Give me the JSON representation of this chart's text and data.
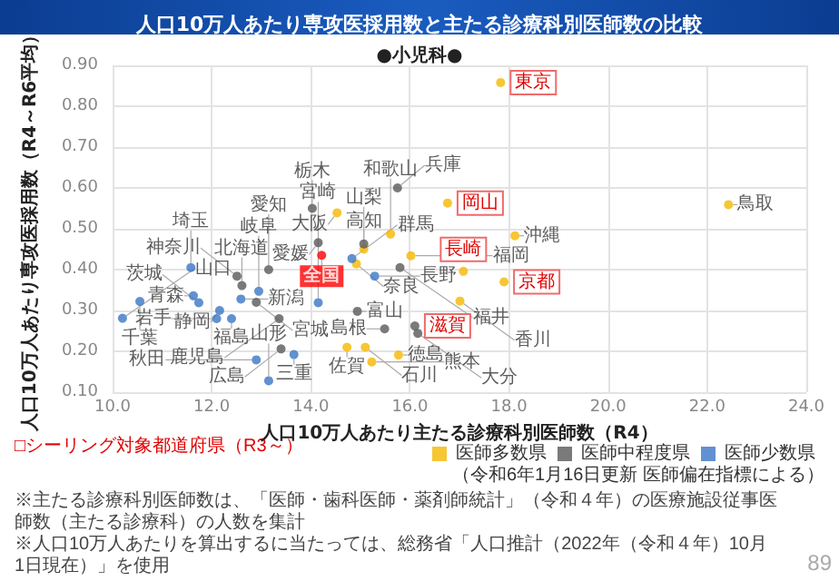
{
  "chart_data": {
    "type": "scatter",
    "title": "人口10万人あたり専攻医採用数と主たる診療科別医師数の比較",
    "subtitle": "●小児科●",
    "xlabel": "人口10万人あたり主たる診療科別医師数（R4）",
    "ylabel": "人口10万人あたり専攻医採用数（R4～R6平均）",
    "xlim": [
      10,
      24
    ],
    "xticks": [
      {
        "value": 10,
        "label": "10.0"
      },
      {
        "value": 12,
        "label": "12.0"
      },
      {
        "value": 14,
        "label": "14.0"
      },
      {
        "value": 16,
        "label": "16.0"
      },
      {
        "value": 18,
        "label": "18.0"
      },
      {
        "value": 20,
        "label": "20.0"
      },
      {
        "value": 22,
        "label": "22.0"
      },
      {
        "value": 24,
        "label": "24.0"
      }
    ],
    "ylim": [
      0.1,
      0.9
    ],
    "yticks": [
      {
        "value": 0.1,
        "label": "0.10"
      },
      {
        "value": 0.2,
        "label": "0.20"
      },
      {
        "value": 0.3,
        "label": "0.30"
      },
      {
        "value": 0.4,
        "label": "0.40"
      },
      {
        "value": 0.5,
        "label": "0.50"
      },
      {
        "value": 0.6,
        "label": "0.60"
      },
      {
        "value": 0.7,
        "label": "0.70"
      },
      {
        "value": 0.8,
        "label": "0.80"
      },
      {
        "value": 0.9,
        "label": "0.90"
      }
    ],
    "grid": true,
    "legend": "bottom right",
    "marker": "circle",
    "series": [
      {
        "name": "医師多数県",
        "color": "#f5b800",
        "x": [
          17.83,
          22.43,
          16.76,
          14.53,
          15.61,
          15.07,
          16.02,
          17.08,
          18.12,
          17.9,
          17.01,
          14.92,
          14.73,
          15.1,
          15.23,
          15.77
        ],
        "values": [
          0.858,
          0.559,
          0.563,
          0.539,
          0.487,
          0.45,
          0.434,
          0.396,
          0.483,
          0.37,
          0.323,
          0.414,
          0.21,
          0.21,
          0.174,
          0.191
        ],
        "value_labels": [
          null,
          "鳥取",
          null,
          "大阪",
          "和歌山",
          "高知",
          "福岡",
          null,
          "沖縄",
          null,
          "香川",
          "奈良",
          "佐賀",
          "石川",
          "熊本",
          "徳島"
        ]
      },
      {
        "name": "医師中程度県",
        "color": "#595959",
        "x": [
          15.75,
          14.03,
          14.15,
          15.07,
          15.8,
          12.51,
          13.15,
          12.61,
          12.9,
          13.36,
          14.94,
          15.49,
          16.1,
          16.16,
          13.4
        ],
        "values": [
          0.6,
          0.55,
          0.466,
          0.463,
          0.405,
          0.384,
          0.4,
          0.361,
          0.32,
          0.28,
          0.298,
          0.255,
          0.262,
          0.244,
          0.206
        ],
        "value_labels": [
          "兵庫",
          "栃木",
          "愛媛",
          "山梨",
          "福井",
          "神奈川",
          "愛知",
          "北海道",
          "宮城",
          "鹿児島",
          "富山",
          "島根",
          null,
          "大分",
          "広島"
        ]
      },
      {
        "name": "医師少数県",
        "color": "#3a75c4",
        "x": [
          11.58,
          10.55,
          11.63,
          11.74,
          12.59,
          12.95,
          14.83,
          15.29,
          14.15,
          12.16,
          12.1,
          12.4,
          10.2,
          13.66,
          12.9,
          13.15
        ],
        "values": [
          0.405,
          0.322,
          0.336,
          0.319,
          0.328,
          0.347,
          0.427,
          0.384,
          0.319,
          0.3,
          0.28,
          0.28,
          0.281,
          0.192,
          0.179,
          0.128
        ],
        "value_labels": [
          "埼玉",
          "千葉",
          "青森",
          "茨城",
          "新潟",
          "岐阜",
          "群馬",
          "長野",
          "宮崎",
          "静岡",
          "岩手",
          "福島",
          "山口",
          "三重",
          "秋田",
          "山形"
        ]
      },
      {
        "color": "#ff0000",
        "x": [
          14.22
        ],
        "values": [
          0.435
        ],
        "value_labels": [
          "全国"
        ]
      }
    ],
    "annotations": [
      "（令和6年1月16日更新 医師偏在指標による）",
      "□シーリング対象都道府県（R3～）",
      "※主たる診療科別医師数は、「医師・歯科医師・薬剤師統計」（令和４年）の医療施設従事医師数（主たる診療科）の人数を集計",
      "※人口10万人あたりを算出するに当たっては、総務省「人口推計（2022年（令和４年）10月1日現在）」を使用",
      "89",
      {
        "text": "東京",
        "x": 17.83,
        "y": 0.858
      },
      {
        "text": "岡山",
        "x": 16.76,
        "y": 0.563
      },
      {
        "text": "長崎",
        "x": 17.08,
        "y": 0.396
      },
      {
        "text": "京都",
        "x": 17.9,
        "y": 0.37
      },
      {
        "text": "滋賀",
        "x": 16.1,
        "y": 0.262
      }
    ]
  }
}
